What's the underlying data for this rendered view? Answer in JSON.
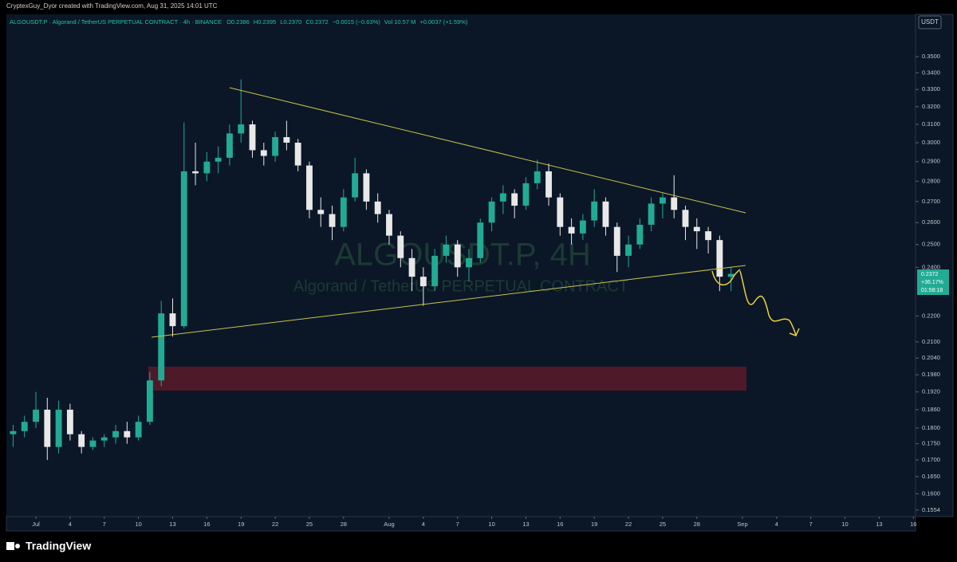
{
  "attribution": "CryptexGuy_Dyor created with TradingView.com, Aug 31, 2025 14:01 UTC",
  "footer_brand": "TradingView",
  "chart_data": {
    "type": "candlestick",
    "title": "ALGOUSDT.P · Algorand / TetherUS PERPETUAL CONTRACT · 4h · BINANCE",
    "header_stats": [
      "O0.2386",
      "H0.2395",
      "L0.2370",
      "C0.2372",
      "−0.0015 (−0.63%)",
      "Vol 10.57 M",
      "+0.0037 (+1.59%)"
    ],
    "watermark": [
      "ALGOUSDT.P, 4H",
      "Algorand / TetherUS PERPETUAL CONTRACT"
    ],
    "currency": "USDT",
    "price_label": [
      "0.2372",
      "+36.17%",
      "01:58:18"
    ],
    "log_scale": true,
    "up_color": "#22ab94",
    "down_color": "#e8e8e8",
    "x": [
      -2,
      -1,
      0,
      1,
      2,
      3,
      4,
      5,
      6,
      7,
      8,
      9,
      10,
      11,
      12,
      13,
      14,
      15,
      16,
      17,
      18,
      19,
      20,
      21,
      22,
      23,
      24,
      25,
      26,
      27,
      28,
      29,
      30,
      31,
      32,
      33,
      34,
      35,
      36,
      37,
      38,
      39,
      40,
      41,
      42,
      43,
      44,
      45,
      46,
      47,
      48,
      49,
      50,
      51,
      52,
      53,
      54,
      55,
      56,
      57,
      58,
      59,
      60,
      61
    ],
    "open": [
      0.178,
      0.179,
      0.182,
      0.186,
      0.174,
      0.186,
      0.178,
      0.174,
      0.176,
      0.177,
      0.179,
      0.177,
      0.182,
      0.196,
      0.221,
      0.216,
      0.285,
      0.284,
      0.29,
      0.292,
      0.305,
      0.31,
      0.296,
      0.293,
      0.303,
      0.3,
      0.288,
      0.266,
      0.264,
      0.258,
      0.272,
      0.284,
      0.27,
      0.264,
      0.254,
      0.244,
      0.236,
      0.232,
      0.245,
      0.25,
      0.24,
      0.244,
      0.26,
      0.27,
      0.274,
      0.268,
      0.279,
      0.285,
      0.272,
      0.258,
      0.255,
      0.261,
      0.27,
      0.258,
      0.245,
      0.25,
      0.259,
      0.269,
      0.272,
      0.266,
      0.258,
      0.256,
      0.252,
      0.236
    ],
    "high": [
      0.181,
      0.184,
      0.192,
      0.19,
      0.189,
      0.188,
      0.179,
      0.177,
      0.178,
      0.181,
      0.182,
      0.184,
      0.199,
      0.226,
      0.227,
      0.311,
      0.3,
      0.295,
      0.298,
      0.31,
      0.336,
      0.312,
      0.3,
      0.306,
      0.312,
      0.302,
      0.29,
      0.272,
      0.268,
      0.276,
      0.292,
      0.286,
      0.274,
      0.266,
      0.256,
      0.248,
      0.24,
      0.248,
      0.254,
      0.252,
      0.248,
      0.262,
      0.272,
      0.278,
      0.276,
      0.282,
      0.291,
      0.289,
      0.274,
      0.262,
      0.264,
      0.276,
      0.272,
      0.26,
      0.254,
      0.262,
      0.272,
      0.274,
      0.283,
      0.268,
      0.262,
      0.258,
      0.254,
      0.24
    ],
    "low": [
      0.174,
      0.177,
      0.18,
      0.17,
      0.172,
      0.176,
      0.172,
      0.173,
      0.174,
      0.175,
      0.175,
      0.176,
      0.181,
      0.194,
      0.212,
      0.215,
      0.278,
      0.28,
      0.284,
      0.288,
      0.3,
      0.292,
      0.288,
      0.29,
      0.296,
      0.285,
      0.262,
      0.258,
      0.252,
      0.256,
      0.27,
      0.266,
      0.26,
      0.25,
      0.24,
      0.23,
      0.224,
      0.23,
      0.242,
      0.236,
      0.234,
      0.242,
      0.256,
      0.264,
      0.262,
      0.266,
      0.276,
      0.268,
      0.254,
      0.25,
      0.252,
      0.258,
      0.254,
      0.238,
      0.24,
      0.248,
      0.256,
      0.262,
      0.262,
      0.252,
      0.248,
      0.246,
      0.23,
      0.23
    ],
    "close": [
      0.179,
      0.182,
      0.186,
      0.174,
      0.186,
      0.178,
      0.174,
      0.176,
      0.177,
      0.179,
      0.177,
      0.182,
      0.196,
      0.221,
      0.216,
      0.285,
      0.284,
      0.29,
      0.292,
      0.305,
      0.31,
      0.296,
      0.293,
      0.303,
      0.3,
      0.288,
      0.266,
      0.264,
      0.258,
      0.272,
      0.284,
      0.27,
      0.264,
      0.254,
      0.244,
      0.236,
      0.232,
      0.245,
      0.25,
      0.24,
      0.244,
      0.26,
      0.27,
      0.274,
      0.268,
      0.279,
      0.285,
      0.272,
      0.258,
      0.255,
      0.261,
      0.27,
      0.258,
      0.245,
      0.25,
      0.259,
      0.269,
      0.272,
      0.266,
      0.258,
      0.256,
      0.252,
      0.236,
      0.2372
    ],
    "xlim": [
      -2.59,
      77.19
    ],
    "xticks": [
      {
        "value": 0,
        "label": "Jul"
      },
      {
        "value": 3,
        "label": "4"
      },
      {
        "value": 6,
        "label": "7"
      },
      {
        "value": 9,
        "label": "10"
      },
      {
        "value": 12,
        "label": "13"
      },
      {
        "value": 15,
        "label": "16"
      },
      {
        "value": 18,
        "label": "19"
      },
      {
        "value": 21,
        "label": "22"
      },
      {
        "value": 24,
        "label": "25"
      },
      {
        "value": 27,
        "label": "28"
      },
      {
        "value": 31,
        "label": "Aug"
      },
      {
        "value": 34,
        "label": "4"
      },
      {
        "value": 37,
        "label": "7"
      },
      {
        "value": 40,
        "label": "10"
      },
      {
        "value": 43,
        "label": "13"
      },
      {
        "value": 46,
        "label": "16"
      },
      {
        "value": 49,
        "label": "19"
      },
      {
        "value": 52,
        "label": "22"
      },
      {
        "value": 55,
        "label": "25"
      },
      {
        "value": 58,
        "label": "28"
      },
      {
        "value": 62,
        "label": "Sep"
      },
      {
        "value": 65,
        "label": "4"
      },
      {
        "value": 68,
        "label": "7"
      },
      {
        "value": 71,
        "label": "10"
      },
      {
        "value": 74,
        "label": "13"
      },
      {
        "value": 77,
        "label": "16"
      }
    ],
    "ylim": [
      0.1536,
      0.3775
    ],
    "yticks": [
      {
        "value": 0.35,
        "label": "0.3500"
      },
      {
        "value": 0.34,
        "label": "0.3400"
      },
      {
        "value": 0.33,
        "label": "0.3300"
      },
      {
        "value": 0.32,
        "label": "0.3200"
      },
      {
        "value": 0.31,
        "label": "0.3100"
      },
      {
        "value": 0.3,
        "label": "0.3000"
      },
      {
        "value": 0.29,
        "label": "0.2900"
      },
      {
        "value": 0.28,
        "label": "0.2800"
      },
      {
        "value": 0.27,
        "label": "0.2700"
      },
      {
        "value": 0.26,
        "label": "0.2600"
      },
      {
        "value": 0.25,
        "label": "0.2500"
      },
      {
        "value": 0.24,
        "label": "0.2400"
      },
      {
        "value": 0.22,
        "label": "0.2200"
      },
      {
        "value": 0.21,
        "label": "0.2100"
      },
      {
        "value": 0.204,
        "label": "0.2040"
      },
      {
        "value": 0.198,
        "label": "0.1980"
      },
      {
        "value": 0.192,
        "label": "0.1920"
      },
      {
        "value": 0.186,
        "label": "0.1860"
      },
      {
        "value": 0.18,
        "label": "0.1800"
      },
      {
        "value": 0.175,
        "label": "0.1750"
      },
      {
        "value": 0.17,
        "label": "0.1700"
      },
      {
        "value": 0.165,
        "label": "0.1650"
      },
      {
        "value": 0.16,
        "label": "0.1600"
      },
      {
        "value": 0.1554,
        "label": "0.1554"
      }
    ]
  }
}
